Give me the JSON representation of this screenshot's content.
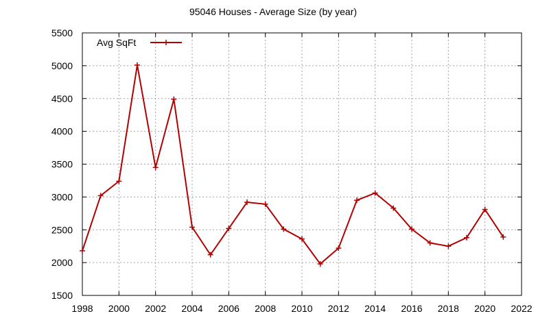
{
  "chart_data": {
    "type": "line",
    "title": "95046 Houses - Average Size (by year)",
    "xlabel": "",
    "ylabel": "",
    "xlim": [
      1998,
      2022
    ],
    "ylim": [
      1500,
      5500
    ],
    "xticks": [
      1998,
      2000,
      2002,
      2004,
      2006,
      2008,
      2010,
      2012,
      2014,
      2016,
      2018,
      2020,
      2022
    ],
    "yticks": [
      1500,
      2000,
      2500,
      3000,
      3500,
      4000,
      4500,
      5000,
      5500
    ],
    "grid": true,
    "legend_position": "top-left",
    "series": [
      {
        "name": "Avg SqFt",
        "color": "#b00000",
        "marker": "plus",
        "x": [
          1998,
          1999,
          2000,
          2001,
          2002,
          2003,
          2004,
          2005,
          2006,
          2007,
          2008,
          2009,
          2010,
          2011,
          2012,
          2013,
          2014,
          2015,
          2016,
          2017,
          2018,
          2019,
          2020,
          2021
        ],
        "y": [
          2180,
          3020,
          3240,
          5010,
          3450,
          4490,
          2540,
          2120,
          2520,
          2920,
          2890,
          2510,
          2360,
          1980,
          2220,
          2950,
          3060,
          2830,
          2510,
          2300,
          2250,
          2380,
          2810,
          2390
        ]
      }
    ]
  }
}
